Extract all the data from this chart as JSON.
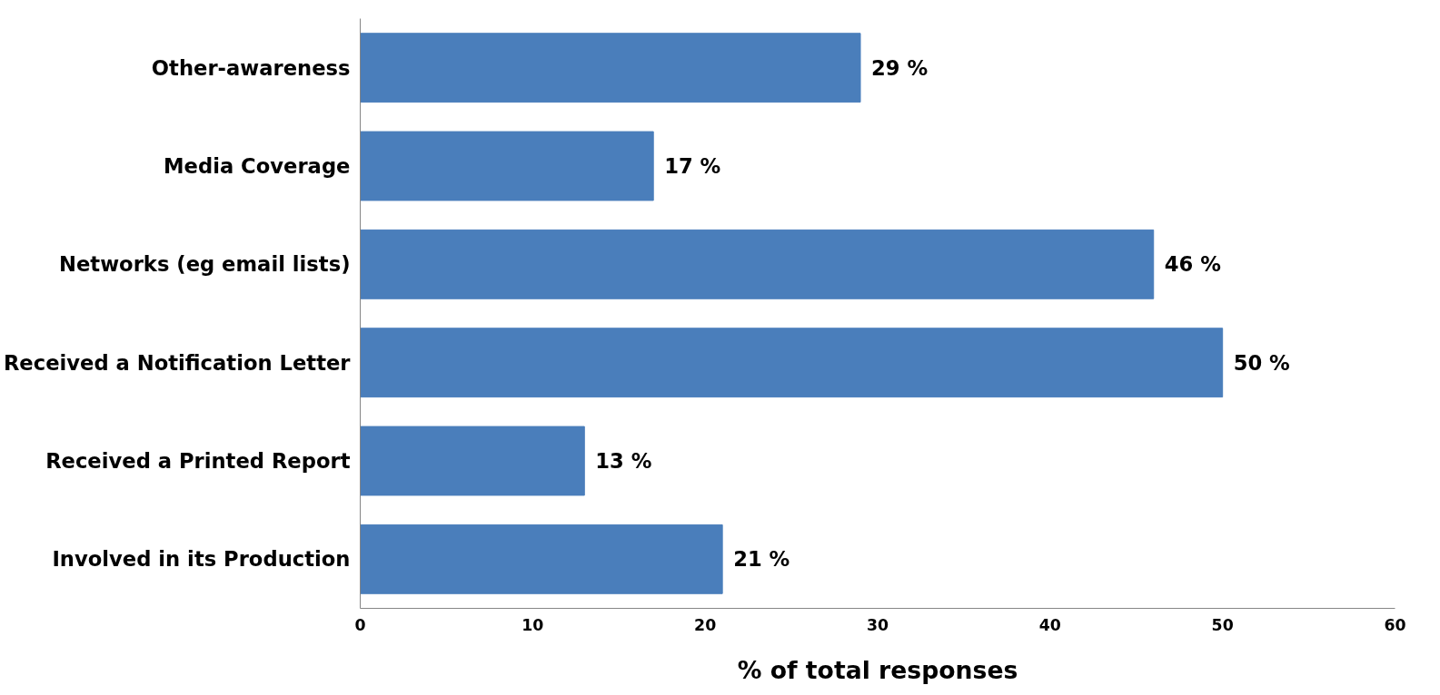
{
  "chart_data": {
    "type": "bar",
    "orientation": "horizontal",
    "xlabel": "% of total responses",
    "categories": [
      "Other-awareness",
      "Media Coverage",
      "Networks (eg email lists)",
      "Received a Notification Letter",
      "Received a Printed Report",
      "Involved in its Production"
    ],
    "values": [
      29,
      17,
      46,
      50,
      13,
      21
    ],
    "value_labels": [
      "29 %",
      "17 %",
      "46 %",
      "50 %",
      "13 %",
      "21 %"
    ],
    "color": "#4a7ebb",
    "xlim": [
      0,
      60
    ],
    "xticks": [
      0,
      10,
      20,
      30,
      40,
      50,
      60
    ],
    "grid": false
  }
}
